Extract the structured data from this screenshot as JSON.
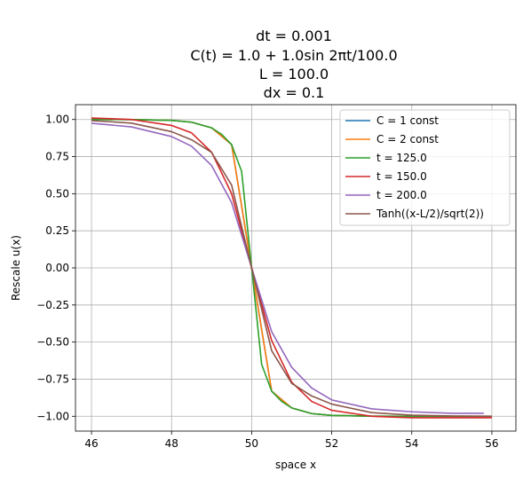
{
  "chart_data": {
    "type": "line",
    "title_lines": [
      "dt = 0.001",
      "C(t) = 1.0 + 1.0sin 2πt/100.0",
      "L = 100.0",
      "dx = 0.1"
    ],
    "xlabel": "space x",
    "ylabel": "Rescale u(x)",
    "xlim": [
      45.6,
      56.6
    ],
    "ylim": [
      -1.1,
      1.1
    ],
    "xticks": [
      46,
      48,
      50,
      52,
      54,
      56
    ],
    "yticks": [
      1.0,
      0.75,
      0.5,
      0.25,
      0.0,
      -0.25,
      -0.5,
      -0.75,
      -1.0
    ],
    "xtick_labels": [
      "46",
      "48",
      "50",
      "52",
      "54",
      "56"
    ],
    "ytick_labels": [
      "1.00",
      "0.75",
      "0.50",
      "0.25",
      "0.00",
      "−0.25",
      "−0.50",
      "−0.75",
      "−1.00"
    ],
    "grid": true,
    "legend_position": "top-right",
    "series": [
      {
        "name": "C = 1 const",
        "color": "#1f77b4",
        "x": [
          46,
          47,
          48,
          48.5,
          49,
          49.5,
          50,
          50.5,
          51,
          51.5,
          52,
          53,
          54,
          55,
          56
        ],
        "y": [
          1.0,
          0.9996,
          0.9942,
          0.982,
          0.9439,
          0.8311,
          0.0,
          -0.8311,
          -0.9439,
          -0.982,
          -0.9942,
          -0.9996,
          -1.0,
          -1.0,
          -1.0
        ]
      },
      {
        "name": "C = 2 const",
        "color": "#ff7f0e",
        "x": [
          46,
          47,
          48,
          48.5,
          49,
          49.5,
          50,
          50.5,
          51,
          51.5,
          52,
          53,
          54,
          55,
          56
        ],
        "y": [
          1.0,
          0.9996,
          0.9942,
          0.982,
          0.9439,
          0.8311,
          0.0,
          -0.8311,
          -0.9439,
          -0.982,
          -0.9942,
          -0.9996,
          -1.0,
          -1.0,
          -1.0
        ]
      },
      {
        "name": "t = 125.0",
        "color": "#2ca02c",
        "x": [
          46,
          47,
          48,
          48.5,
          49,
          49.25,
          49.5,
          49.75,
          50,
          50.25,
          50.5,
          50.75,
          51,
          51.5,
          52,
          53,
          54,
          55,
          56
        ],
        "y": [
          1.0,
          0.9996,
          0.9942,
          0.982,
          0.9439,
          0.9,
          0.8311,
          0.65,
          0.0,
          -0.65,
          -0.8311,
          -0.9,
          -0.9439,
          -0.982,
          -0.9942,
          -0.9996,
          -1.0,
          -1.0,
          -1.0
        ]
      },
      {
        "name": "t = 150.0",
        "color": "#d62728",
        "x": [
          46,
          47,
          48,
          48.5,
          49,
          49.5,
          50,
          50.5,
          51,
          51.5,
          52,
          53,
          54,
          55,
          56
        ],
        "y": [
          1.01,
          1.0,
          0.96,
          0.91,
          0.78,
          0.5,
          0.0,
          -0.49,
          -0.77,
          -0.9,
          -0.96,
          -1.0,
          -1.01,
          -1.01,
          -1.01
        ]
      },
      {
        "name": "t = 200.0",
        "color": "#9467bd",
        "x": [
          46,
          47,
          48,
          48.5,
          49,
          49.5,
          50,
          50.5,
          51,
          51.5,
          52,
          53,
          54,
          55,
          55.8
        ],
        "y": [
          0.975,
          0.95,
          0.885,
          0.82,
          0.69,
          0.44,
          0.0,
          -0.43,
          -0.67,
          -0.81,
          -0.89,
          -0.95,
          -0.97,
          -0.98,
          -0.98
        ]
      },
      {
        "name": "Tanh((x-L/2)/sqrt(2))",
        "color": "#8c564b",
        "x": [
          46,
          47,
          48,
          48.5,
          49,
          49.5,
          50,
          50.5,
          51,
          51.5,
          52,
          53,
          54,
          55,
          56
        ],
        "y": [
          0.993,
          0.9757,
          0.9181,
          0.8632,
          0.778,
          0.5581,
          0.0,
          -0.5581,
          -0.778,
          -0.8632,
          -0.9181,
          -0.9757,
          -0.993,
          -0.998,
          -0.9994
        ]
      }
    ]
  }
}
